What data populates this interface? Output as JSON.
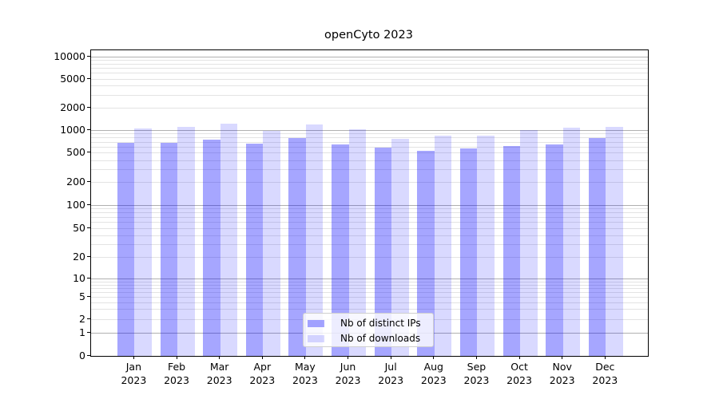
{
  "figure": {
    "title": "openCyto 2023",
    "background_color": "#ffffff"
  },
  "chart_data": {
    "type": "bar",
    "title": "openCyto 2023",
    "xlabel": "",
    "ylabel": "",
    "categories": [
      "Jan",
      "Feb",
      "Mar",
      "Apr",
      "May",
      "Jun",
      "Jul",
      "Aug",
      "Sep",
      "Oct",
      "Nov",
      "Dec"
    ],
    "year_label": "2023",
    "series": [
      {
        "name": "Nb of distinct IPs",
        "color": "rgba(0,0,255,0.35)",
        "values": [
          680,
          685,
          760,
          665,
          790,
          660,
          590,
          540,
          580,
          620,
          650,
          800
        ]
      },
      {
        "name": "Nb of downloads",
        "color": "rgba(0,0,255,0.15)",
        "values": [
          1065,
          1110,
          1230,
          1000,
          1200,
          1030,
          780,
          850,
          860,
          1020,
          1100,
          1120
        ]
      }
    ],
    "yaxis": {
      "scale": "symlog",
      "tick_values": [
        10000,
        5000,
        2000,
        1000,
        500,
        200,
        100,
        50,
        20,
        10,
        5,
        2,
        1,
        0
      ],
      "major_gridline_values": [
        1,
        10,
        100,
        1000,
        10000
      ],
      "range": [
        0,
        10000
      ]
    },
    "legend": {
      "position": "lower-center",
      "entries": [
        "Nb of distinct IPs",
        "Nb of downloads"
      ]
    },
    "grid": true,
    "colors": {
      "major_grid": "#b0b0b0",
      "minor_grid": "#e3e3e3",
      "spine": "#000000",
      "text": "#000000"
    }
  }
}
